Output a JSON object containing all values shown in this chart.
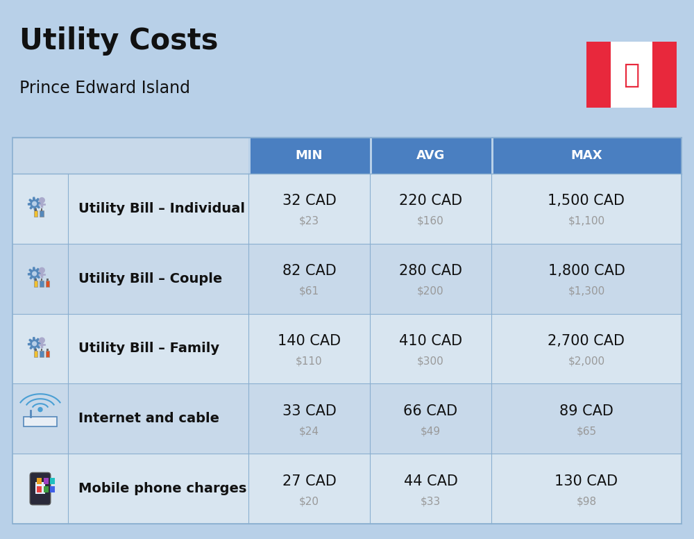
{
  "title": "Utility Costs",
  "subtitle": "Prince Edward Island",
  "background_color": "#b8d0e8",
  "header_bg_color": "#4a7fc1",
  "header_text_color": "#ffffff",
  "row_bg_color_odd": "#c8d9ea",
  "row_bg_color_even": "#d8e5f0",
  "cell_line_color": "#8aafd0",
  "col_headers": [
    "MIN",
    "AVG",
    "MAX"
  ],
  "rows": [
    {
      "label": "Utility Bill – Individual",
      "icon": "utility",
      "min_cad": "32 CAD",
      "min_usd": "$23",
      "avg_cad": "220 CAD",
      "avg_usd": "$160",
      "max_cad": "1,500 CAD",
      "max_usd": "$1,100"
    },
    {
      "label": "Utility Bill – Couple",
      "icon": "utility",
      "min_cad": "82 CAD",
      "min_usd": "$61",
      "avg_cad": "280 CAD",
      "avg_usd": "$200",
      "max_cad": "1,800 CAD",
      "max_usd": "$1,300"
    },
    {
      "label": "Utility Bill – Family",
      "icon": "utility",
      "min_cad": "140 CAD",
      "min_usd": "$110",
      "avg_cad": "410 CAD",
      "avg_usd": "$300",
      "max_cad": "2,700 CAD",
      "max_usd": "$2,000"
    },
    {
      "label": "Internet and cable",
      "icon": "internet",
      "min_cad": "33 CAD",
      "min_usd": "$24",
      "avg_cad": "66 CAD",
      "avg_usd": "$49",
      "max_cad": "89 CAD",
      "max_usd": "$65"
    },
    {
      "label": "Mobile phone charges",
      "icon": "mobile",
      "min_cad": "27 CAD",
      "min_usd": "$20",
      "avg_cad": "44 CAD",
      "avg_usd": "$33",
      "max_cad": "130 CAD",
      "max_usd": "$98"
    }
  ],
  "cad_fontsize": 15,
  "usd_fontsize": 11,
  "label_fontsize": 14,
  "header_fontsize": 13,
  "title_fontsize": 30,
  "subtitle_fontsize": 17,
  "usd_color": "#999999",
  "label_color": "#111111",
  "cad_color": "#111111",
  "flag_red": "#E8283C"
}
